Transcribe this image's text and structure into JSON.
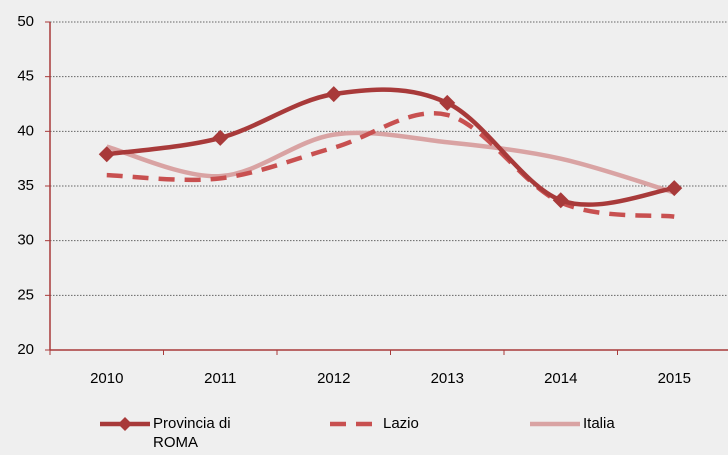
{
  "chart_data": {
    "type": "line",
    "smooth": true,
    "grid": true,
    "categories": [
      "2010",
      "2011",
      "2012",
      "2013",
      "2014",
      "2015"
    ],
    "series": [
      {
        "name": "Provincia di ROMA",
        "color": "#a83a3a",
        "marker": "diamond",
        "dash": "solid",
        "values": [
          37.9,
          39.4,
          43.4,
          42.6,
          33.7,
          34.8
        ]
      },
      {
        "name": "Lazio",
        "color": "#c85050",
        "marker": "none",
        "dash": "dashed",
        "values": [
          36.0,
          35.7,
          38.5,
          41.5,
          33.5,
          32.2
        ]
      },
      {
        "name": "Italia",
        "color": "#d9a3a3",
        "marker": "none",
        "dash": "solid",
        "values": [
          38.6,
          35.9,
          39.7,
          39.0,
          37.5,
          34.4
        ]
      }
    ],
    "ylim": [
      20,
      50
    ],
    "yticks": [
      20,
      25,
      30,
      35,
      40,
      45,
      50
    ],
    "legend": "bottom"
  }
}
